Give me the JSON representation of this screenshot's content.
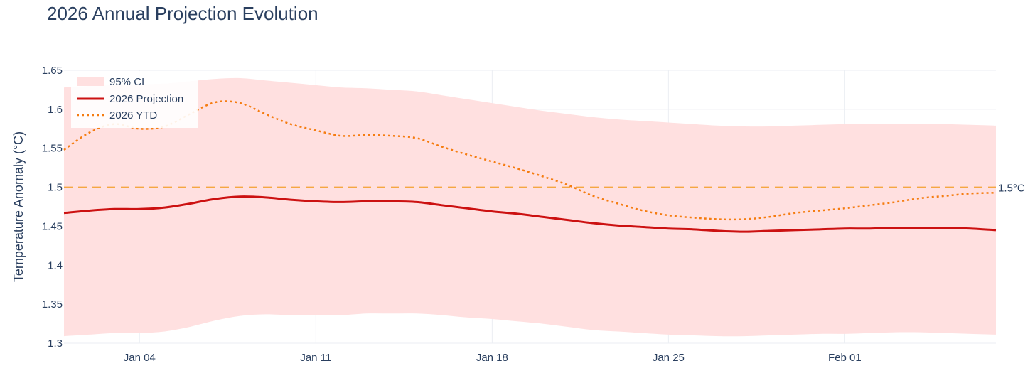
{
  "colors": {
    "ci_fill": "#ffe0e0",
    "projection": "#cc1111",
    "ytd": "#f57c10",
    "threshold": "#f5a742",
    "grid": "#ebeef3"
  },
  "chart_data": {
    "type": "line",
    "title": "2026 Annual Projection Evolution",
    "xlabel": "",
    "ylabel": "Temperature Anomaly (°C)",
    "xlim": [
      "2026-01-01",
      "2026-02-07"
    ],
    "ylim": [
      1.3,
      1.65
    ],
    "grid": true,
    "legend_position": "top-left",
    "x_tick_labels": [
      {
        "date": "2026-01-04",
        "label": "Jan 04"
      },
      {
        "date": "2026-01-11",
        "label": "Jan 11"
      },
      {
        "date": "2026-01-18",
        "label": "Jan 18"
      },
      {
        "date": "2026-01-25",
        "label": "Jan 25"
      },
      {
        "date": "2026-02-01",
        "label": "Feb 01"
      }
    ],
    "y_tick_labels": [
      {
        "value": 1.3,
        "label": "1.3"
      },
      {
        "value": 1.35,
        "label": "1.35"
      },
      {
        "value": 1.4,
        "label": "1.4"
      },
      {
        "value": 1.45,
        "label": "1.45"
      },
      {
        "value": 1.5,
        "label": "1.5"
      },
      {
        "value": 1.55,
        "label": "1.55"
      },
      {
        "value": 1.6,
        "label": "1.6"
      },
      {
        "value": 1.65,
        "label": "1.65"
      }
    ],
    "threshold": {
      "value": 1.5,
      "label": "1.5°C"
    },
    "series": [
      {
        "name": "95% CI",
        "kind": "band",
        "x": [
          "2026-01-01",
          "2026-01-02",
          "2026-01-03",
          "2026-01-04",
          "2026-01-05",
          "2026-01-06",
          "2026-01-07",
          "2026-01-08",
          "2026-01-09",
          "2026-01-10",
          "2026-01-11",
          "2026-01-12",
          "2026-01-13",
          "2026-01-14",
          "2026-01-15",
          "2026-01-16",
          "2026-01-17",
          "2026-01-18",
          "2026-01-19",
          "2026-01-20",
          "2026-01-21",
          "2026-01-22",
          "2026-01-23",
          "2026-01-24",
          "2026-01-25",
          "2026-01-26",
          "2026-01-27",
          "2026-01-28",
          "2026-01-29",
          "2026-01-30",
          "2026-01-31",
          "2026-02-01",
          "2026-02-02",
          "2026-02-03",
          "2026-02-04",
          "2026-02-05",
          "2026-02-06",
          "2026-02-07"
        ],
        "upper": [
          1.628,
          1.63,
          1.631,
          1.632,
          1.633,
          1.636,
          1.639,
          1.64,
          1.637,
          1.634,
          1.631,
          1.628,
          1.627,
          1.625,
          1.623,
          1.618,
          1.613,
          1.608,
          1.603,
          1.598,
          1.594,
          1.59,
          1.587,
          1.585,
          1.583,
          1.581,
          1.579,
          1.578,
          1.578,
          1.579,
          1.58,
          1.581,
          1.581,
          1.581,
          1.581,
          1.581,
          1.58,
          1.579
        ],
        "lower": [
          1.309,
          1.311,
          1.313,
          1.313,
          1.315,
          1.321,
          1.329,
          1.335,
          1.337,
          1.336,
          1.336,
          1.336,
          1.338,
          1.338,
          1.338,
          1.336,
          1.333,
          1.331,
          1.328,
          1.325,
          1.321,
          1.317,
          1.315,
          1.313,
          1.311,
          1.31,
          1.309,
          1.309,
          1.31,
          1.311,
          1.312,
          1.312,
          1.313,
          1.314,
          1.314,
          1.313,
          1.312,
          1.311
        ]
      },
      {
        "name": "2026 Projection",
        "kind": "line",
        "x": [
          "2026-01-01",
          "2026-01-02",
          "2026-01-03",
          "2026-01-04",
          "2026-01-05",
          "2026-01-06",
          "2026-01-07",
          "2026-01-08",
          "2026-01-09",
          "2026-01-10",
          "2026-01-11",
          "2026-01-12",
          "2026-01-13",
          "2026-01-14",
          "2026-01-15",
          "2026-01-16",
          "2026-01-17",
          "2026-01-18",
          "2026-01-19",
          "2026-01-20",
          "2026-01-21",
          "2026-01-22",
          "2026-01-23",
          "2026-01-24",
          "2026-01-25",
          "2026-01-26",
          "2026-01-27",
          "2026-01-28",
          "2026-01-29",
          "2026-01-30",
          "2026-01-31",
          "2026-02-01",
          "2026-02-02",
          "2026-02-03",
          "2026-02-04",
          "2026-02-05",
          "2026-02-06",
          "2026-02-07"
        ],
        "values": [
          1.467,
          1.47,
          1.472,
          1.472,
          1.474,
          1.479,
          1.485,
          1.488,
          1.487,
          1.484,
          1.482,
          1.481,
          1.482,
          1.482,
          1.481,
          1.477,
          1.473,
          1.469,
          1.466,
          1.462,
          1.458,
          1.454,
          1.451,
          1.449,
          1.447,
          1.446,
          1.444,
          1.443,
          1.444,
          1.445,
          1.446,
          1.447,
          1.447,
          1.448,
          1.448,
          1.448,
          1.447,
          1.445
        ]
      },
      {
        "name": "2026 YTD",
        "kind": "line",
        "x": [
          "2026-01-01",
          "2026-01-02",
          "2026-01-03",
          "2026-01-04",
          "2026-01-05",
          "2026-01-06",
          "2026-01-07",
          "2026-01-08",
          "2026-01-09",
          "2026-01-10",
          "2026-01-11",
          "2026-01-12",
          "2026-01-13",
          "2026-01-14",
          "2026-01-15",
          "2026-01-16",
          "2026-01-17",
          "2026-01-18",
          "2026-01-19",
          "2026-01-20",
          "2026-01-21",
          "2026-01-22",
          "2026-01-23",
          "2026-01-24",
          "2026-01-25",
          "2026-01-26",
          "2026-01-27",
          "2026-01-28",
          "2026-01-29",
          "2026-01-30",
          "2026-01-31",
          "2026-02-01",
          "2026-02-02",
          "2026-02-03",
          "2026-02-04",
          "2026-02-05",
          "2026-02-06",
          "2026-02-07"
        ],
        "values": [
          1.548,
          1.57,
          1.581,
          1.575,
          1.578,
          1.594,
          1.609,
          1.608,
          1.594,
          1.581,
          1.573,
          1.566,
          1.567,
          1.566,
          1.563,
          1.552,
          1.542,
          1.533,
          1.524,
          1.514,
          1.503,
          1.489,
          1.479,
          1.47,
          1.464,
          1.461,
          1.459,
          1.459,
          1.462,
          1.467,
          1.47,
          1.473,
          1.477,
          1.481,
          1.486,
          1.489,
          1.492,
          1.493
        ]
      }
    ]
  }
}
